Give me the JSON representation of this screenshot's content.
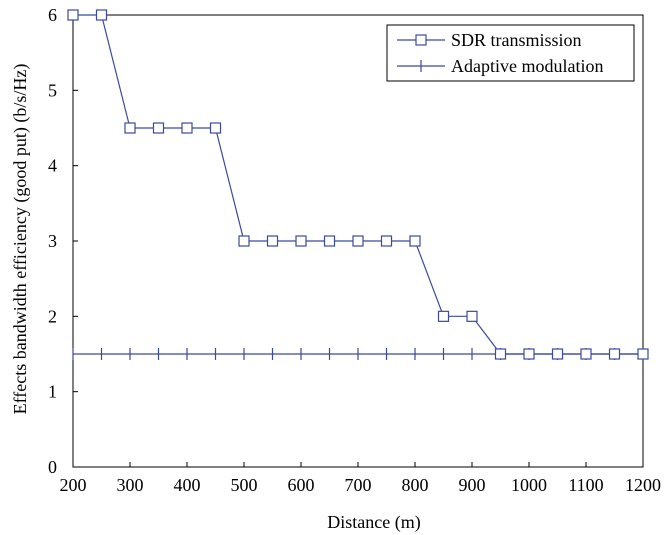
{
  "chart_data": {
    "type": "line",
    "title": "",
    "xlabel": "Distance (m)",
    "ylabel": "Effects bandwidth efficiency (good put) (b/s/Hz)",
    "xlim": [
      200,
      1200
    ],
    "ylim": [
      0,
      6
    ],
    "xticks": [
      200,
      300,
      400,
      500,
      600,
      700,
      800,
      900,
      1000,
      1100,
      1200
    ],
    "yticks": [
      0,
      1,
      2,
      3,
      4,
      5,
      6
    ],
    "grid": false,
    "legend_position": "top-right",
    "series": [
      {
        "name": "SDR transmission",
        "marker": "square",
        "color": "#3b4a9a",
        "x": [
          200,
          250,
          300,
          350,
          400,
          450,
          500,
          550,
          600,
          650,
          700,
          750,
          800,
          850,
          900,
          950,
          1000,
          1050,
          1100,
          1150,
          1200
        ],
        "y": [
          6,
          6,
          4.5,
          4.5,
          4.5,
          4.5,
          3,
          3,
          3,
          3,
          3,
          3,
          3,
          2,
          2,
          1.5,
          1.5,
          1.5,
          1.5,
          1.5,
          1.5
        ]
      },
      {
        "name": "Adaptive modulation",
        "marker": "plus",
        "color": "#3b4a9a",
        "x": [
          200,
          250,
          300,
          350,
          400,
          450,
          500,
          550,
          600,
          650,
          700,
          750,
          800,
          850,
          900,
          950,
          1000,
          1050,
          1100,
          1150,
          1200
        ],
        "y": [
          1.5,
          1.5,
          1.5,
          1.5,
          1.5,
          1.5,
          1.5,
          1.5,
          1.5,
          1.5,
          1.5,
          1.5,
          1.5,
          1.5,
          1.5,
          1.5,
          1.5,
          1.5,
          1.5,
          1.5,
          1.5
        ]
      }
    ]
  }
}
